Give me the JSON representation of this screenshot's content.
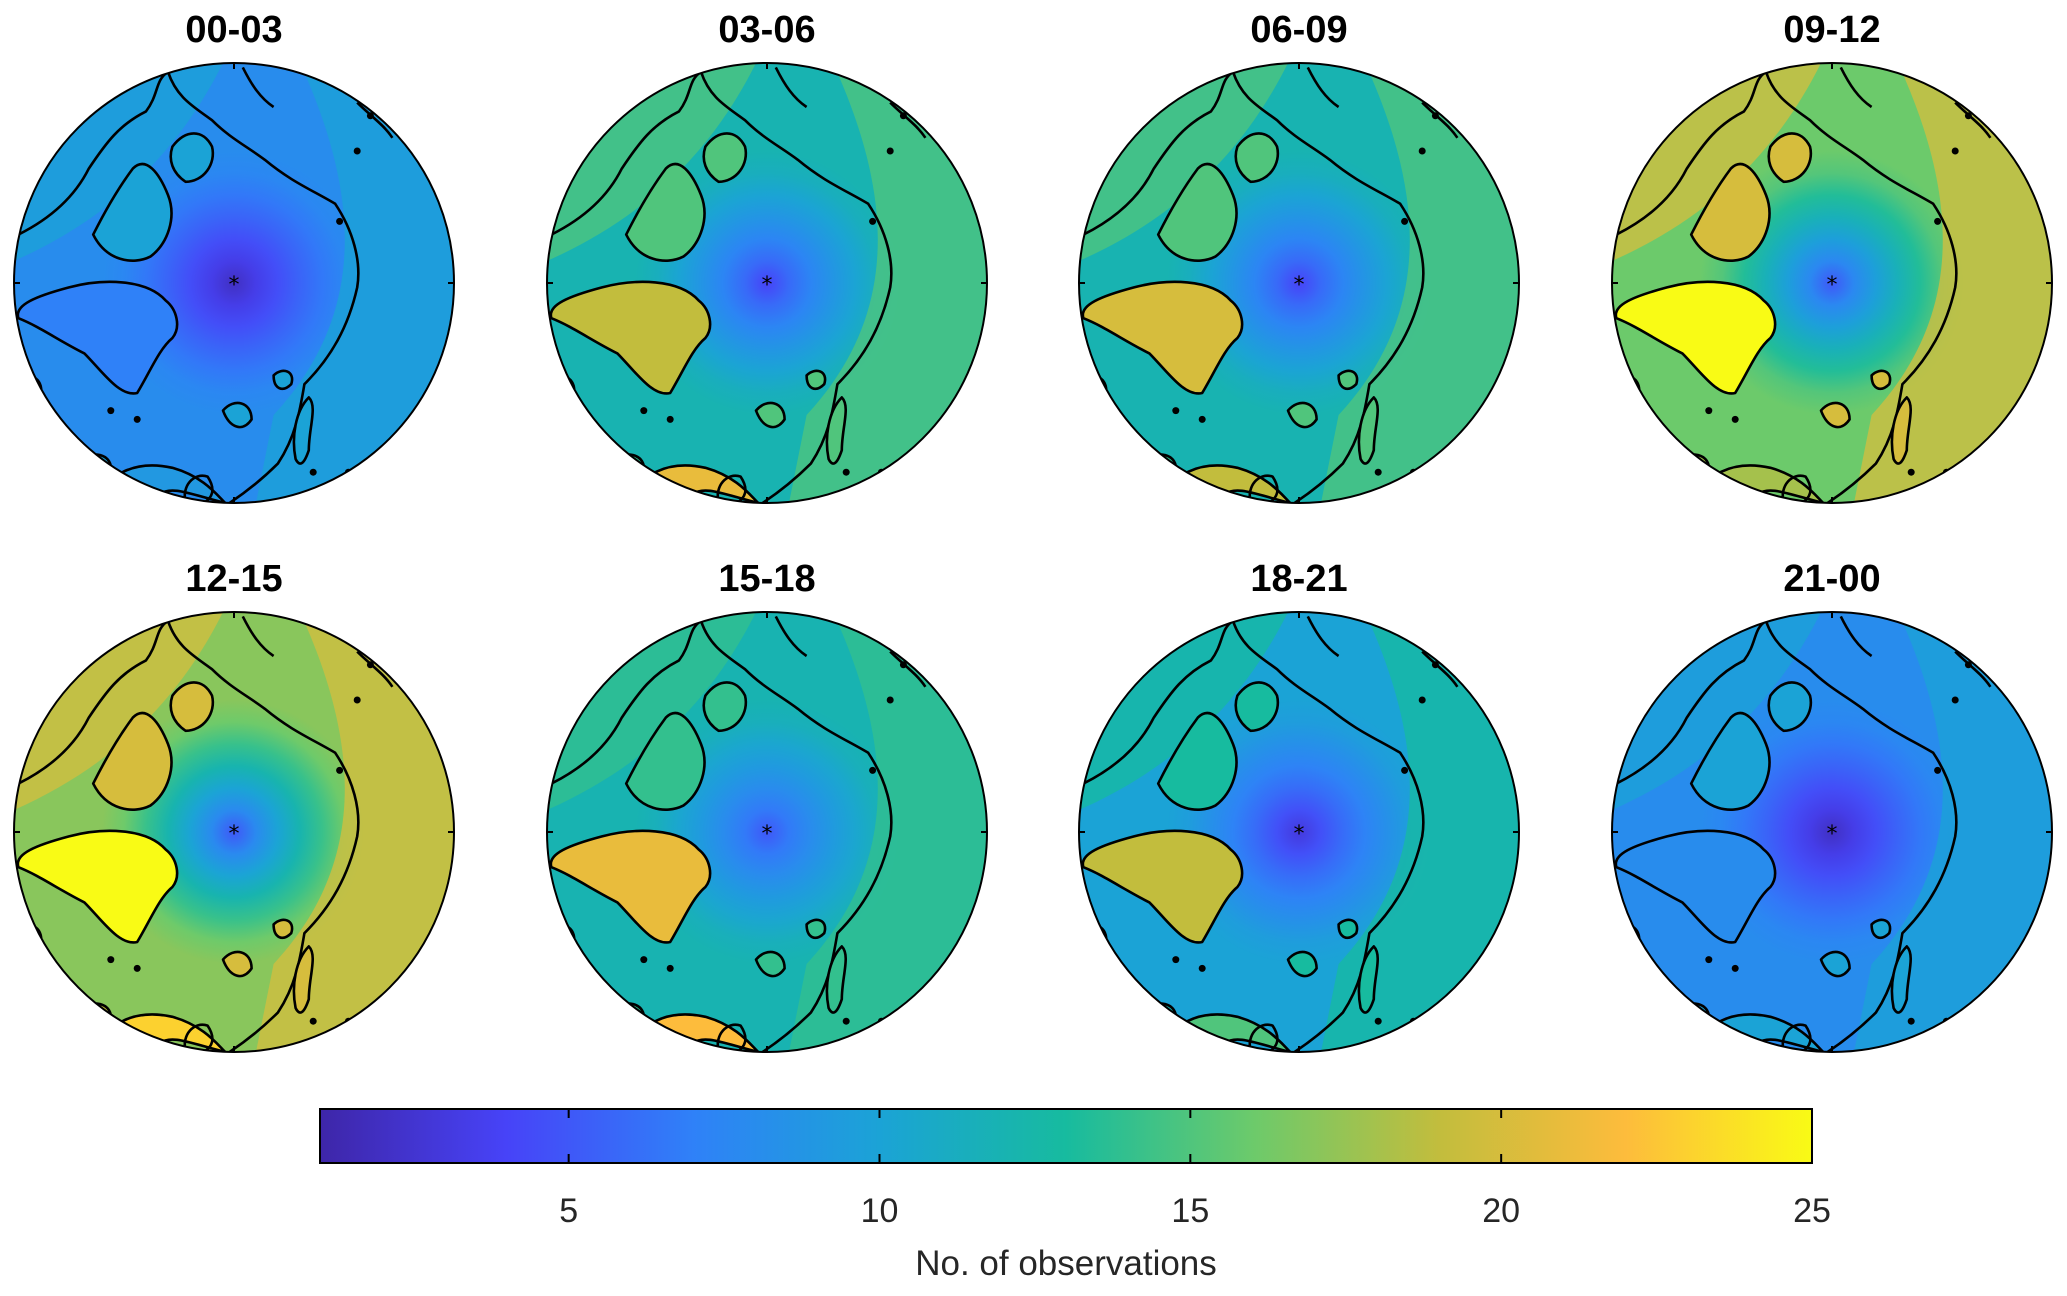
{
  "figure": {
    "colorbar_label": "No. of observations"
  },
  "chart_data": {
    "type": "heatmap",
    "projection": "north polar stereographic",
    "colormap": "parula",
    "colormap_stops": [
      "#3e26a8",
      "#4743f8",
      "#2f81f8",
      "#1ba3d6",
      "#17bb9f",
      "#6cca6b",
      "#c2bd3d",
      "#fdbc3c",
      "#f9fb15"
    ],
    "clim": [
      1,
      25
    ],
    "colorbar": {
      "ticks": [
        5,
        10,
        15,
        20,
        25
      ],
      "tick_labels": [
        "5",
        "10",
        "15",
        "20",
        "25"
      ],
      "label": "No. of observations",
      "orientation": "horizontal"
    },
    "panels": [
      {
        "title": "00-03",
        "pole_value": 2,
        "ocean_value": 8,
        "land_value": 10,
        "greenland_value": 7,
        "scandinavia_value": 9
      },
      {
        "title": "03-06",
        "pole_value": 4,
        "ocean_value": 12,
        "land_value": 15,
        "greenland_value": 19,
        "scandinavia_value": 21
      },
      {
        "title": "06-09",
        "pole_value": 4,
        "ocean_value": 12,
        "land_value": 15,
        "greenland_value": 20,
        "scandinavia_value": 19
      },
      {
        "title": "09-12",
        "pole_value": 5,
        "ocean_value": 16,
        "land_value": 20,
        "greenland_value": 25,
        "scandinavia_value": 18
      },
      {
        "title": "12-15",
        "pole_value": 5,
        "ocean_value": 17,
        "land_value": 20,
        "greenland_value": 25,
        "scandinavia_value": 23
      },
      {
        "title": "15-18",
        "pole_value": 5,
        "ocean_value": 12,
        "land_value": 14,
        "greenland_value": 21,
        "scandinavia_value": 22
      },
      {
        "title": "18-21",
        "pole_value": 3,
        "ocean_value": 10,
        "land_value": 13,
        "greenland_value": 19,
        "scandinavia_value": 15
      },
      {
        "title": "21-00",
        "pole_value": 2,
        "ocean_value": 8,
        "land_value": 10,
        "greenland_value": 8,
        "scandinavia_value": 10
      }
    ]
  }
}
